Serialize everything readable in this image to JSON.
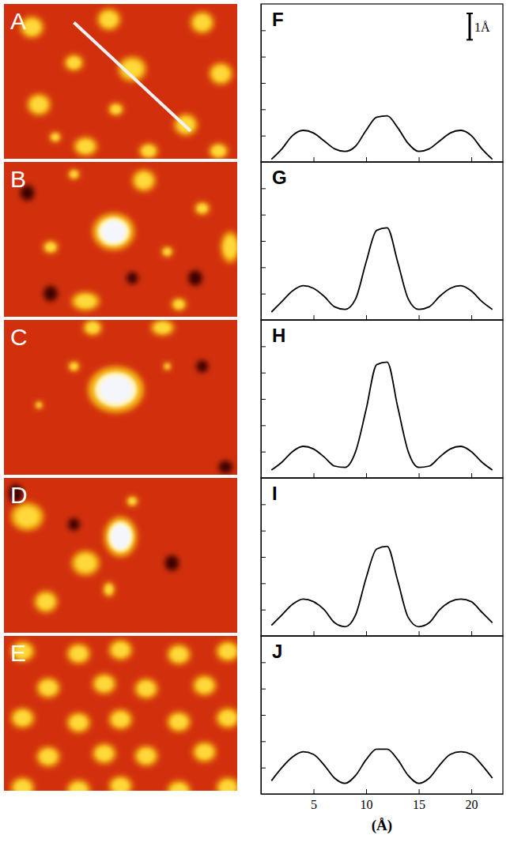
{
  "images": [
    {
      "label": "A"
    },
    {
      "label": "B"
    },
    {
      "label": "C"
    },
    {
      "label": "D"
    },
    {
      "label": "E"
    }
  ],
  "chart_data": [
    {
      "type": "line",
      "title": "F",
      "color": "#000000",
      "line_style": "solid",
      "tick_labels": false,
      "scale_bar": {
        "label": "1Å",
        "value": 1
      },
      "x": [
        1,
        2,
        3,
        4,
        5,
        6,
        7,
        8,
        9,
        10,
        11,
        12,
        13,
        14,
        15,
        16,
        17,
        18,
        19,
        20,
        21,
        22
      ],
      "values": [
        0.1,
        0.5,
        1.0,
        1.2,
        1.1,
        0.8,
        0.5,
        0.4,
        0.6,
        1.2,
        1.7,
        1.75,
        1.3,
        0.7,
        0.4,
        0.5,
        0.8,
        1.1,
        1.2,
        1.0,
        0.5,
        0.1
      ],
      "xlim": [
        0,
        23
      ],
      "xticks": [
        5,
        10,
        15,
        20
      ],
      "ylim": [
        0,
        6
      ],
      "yticks": [
        1,
        2,
        3,
        4,
        5
      ]
    },
    {
      "type": "line",
      "title": "G",
      "color": "#000000",
      "line_style": "solid",
      "tick_labels": false,
      "x": [
        1,
        2,
        3,
        4,
        5,
        6,
        7,
        8,
        9,
        10,
        11,
        12,
        13,
        14,
        15,
        16,
        17,
        18,
        19,
        20,
        21,
        22
      ],
      "values": [
        0.3,
        0.7,
        1.1,
        1.3,
        1.2,
        0.9,
        0.5,
        0.4,
        0.8,
        2.2,
        3.4,
        3.5,
        2.2,
        0.8,
        0.4,
        0.5,
        0.9,
        1.2,
        1.3,
        1.1,
        0.7,
        0.4
      ],
      "xlim": [
        0,
        23
      ],
      "xticks": [
        5,
        10,
        15,
        20
      ],
      "ylim": [
        0,
        6
      ],
      "yticks": [
        1,
        2,
        3,
        4,
        5
      ]
    },
    {
      "type": "line",
      "title": "H",
      "color": "#000000",
      "line_style": "solid",
      "tick_labels": false,
      "x": [
        1,
        2,
        3,
        4,
        5,
        6,
        7,
        8,
        9,
        10,
        11,
        12,
        13,
        14,
        15,
        16,
        17,
        18,
        19,
        20,
        21,
        22
      ],
      "values": [
        0.3,
        0.6,
        1.0,
        1.2,
        1.1,
        0.8,
        0.45,
        0.4,
        1.0,
        2.6,
        4.3,
        4.4,
        2.7,
        1.0,
        0.4,
        0.45,
        0.8,
        1.1,
        1.2,
        1.0,
        0.6,
        0.3
      ],
      "xlim": [
        0,
        23
      ],
      "xticks": [
        5,
        10,
        15,
        20
      ],
      "ylim": [
        0,
        6
      ],
      "yticks": [
        1,
        2,
        3,
        4,
        5
      ]
    },
    {
      "type": "line",
      "title": "I",
      "color": "#000000",
      "line_style": "solid",
      "tick_labels": false,
      "x": [
        1,
        2,
        3,
        4,
        5,
        6,
        7,
        8,
        9,
        10,
        11,
        12,
        13,
        14,
        15,
        16,
        17,
        18,
        19,
        20,
        21,
        22
      ],
      "values": [
        0.4,
        0.8,
        1.2,
        1.4,
        1.3,
        1.0,
        0.5,
        0.35,
        0.8,
        2.2,
        3.3,
        3.4,
        2.1,
        0.7,
        0.35,
        0.5,
        1.0,
        1.3,
        1.4,
        1.3,
        0.9,
        0.5
      ],
      "xlim": [
        0,
        23
      ],
      "xticks": [
        5,
        10,
        15,
        20
      ],
      "ylim": [
        0,
        6
      ],
      "yticks": [
        1,
        2,
        3,
        4,
        5
      ]
    },
    {
      "type": "line",
      "title": "J",
      "color": "#000000",
      "line_style": "solid",
      "tick_labels": "x",
      "x_label": "(Å)",
      "x": [
        1,
        2,
        3,
        4,
        5,
        6,
        7,
        8,
        9,
        10,
        11,
        12,
        13,
        14,
        15,
        16,
        17,
        18,
        19,
        20,
        21,
        22
      ],
      "values": [
        0.5,
        1.0,
        1.4,
        1.6,
        1.5,
        1.1,
        0.6,
        0.4,
        0.7,
        1.3,
        1.7,
        1.7,
        1.3,
        0.7,
        0.4,
        0.6,
        1.1,
        1.5,
        1.6,
        1.5,
        1.1,
        0.6
      ],
      "xlim": [
        0,
        23
      ],
      "xticks": [
        5,
        10,
        15,
        20
      ],
      "ylim": [
        0,
        6
      ],
      "yticks": [
        1,
        2,
        3,
        4,
        5
      ]
    }
  ]
}
